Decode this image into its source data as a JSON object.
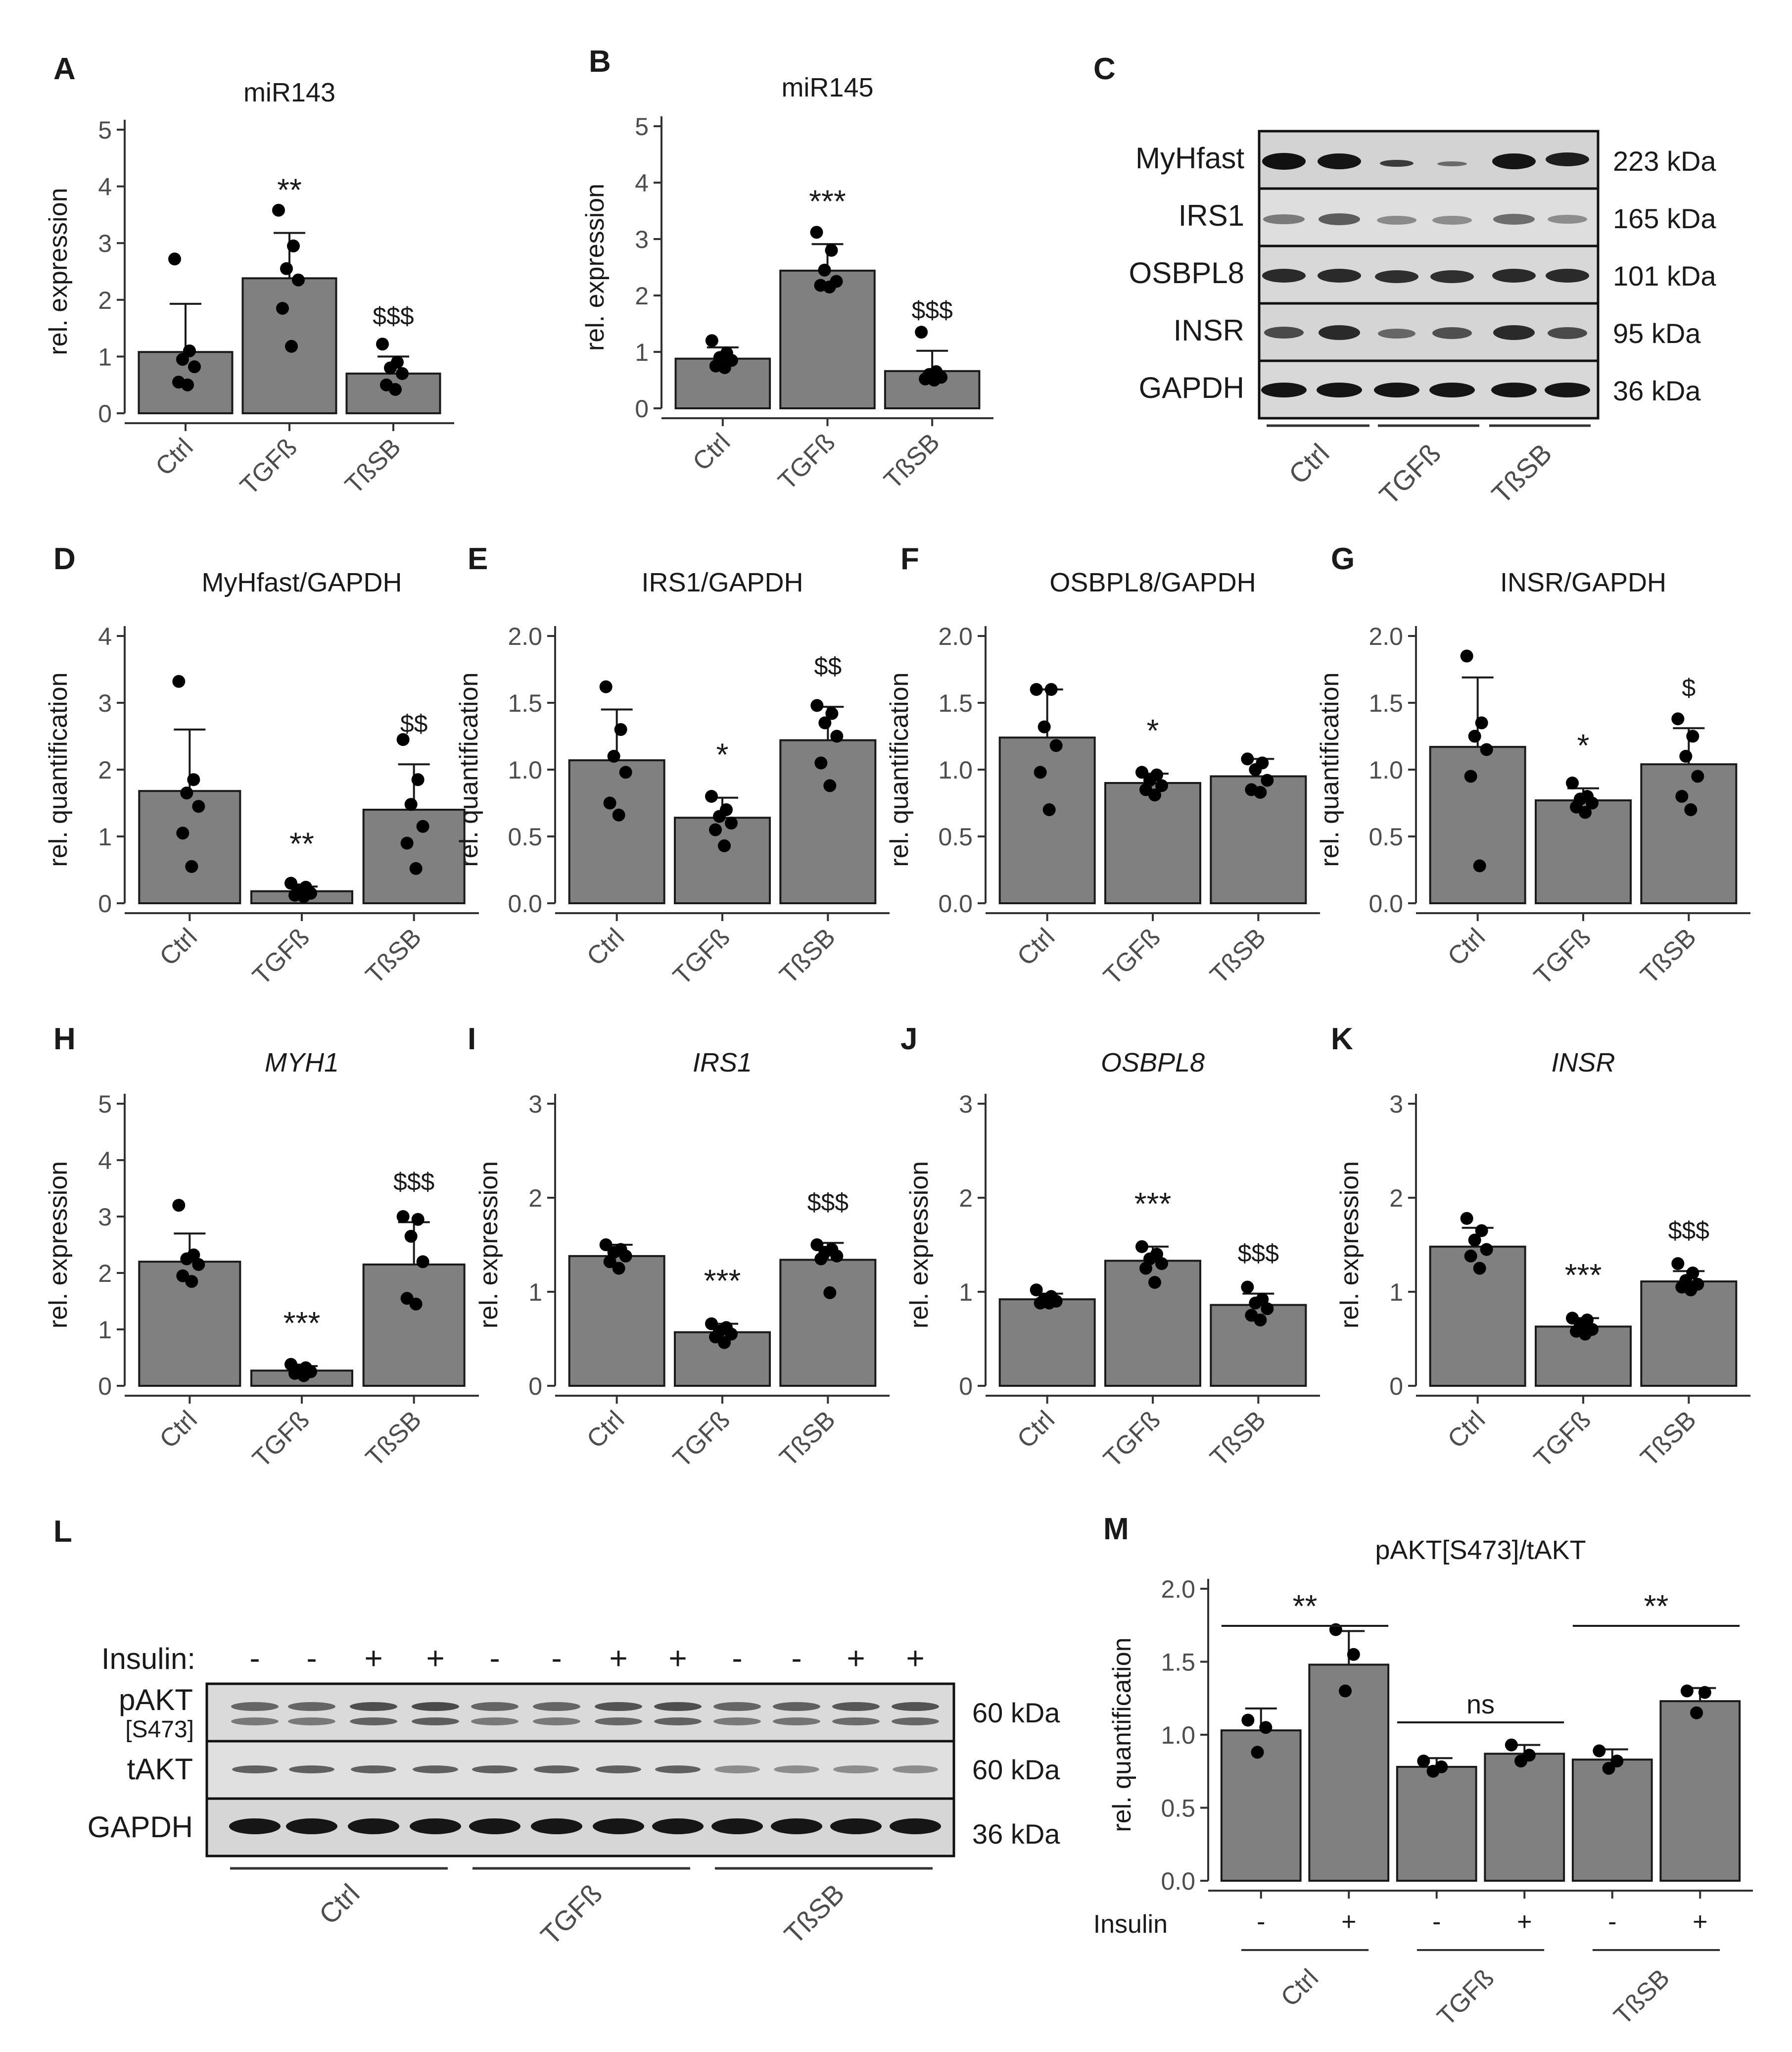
{
  "colors": {
    "bar": "#808080",
    "outline": "#1a1a1a",
    "dot": "#000000",
    "axis": "#333333",
    "tick_text": "#4d4d4d"
  },
  "chart_data": [
    {
      "id": "A",
      "panel_label": "A",
      "type": "bar",
      "title": "miR143",
      "title_italic": false,
      "ylabel": "rel. expression",
      "ylim": [
        0,
        5
      ],
      "yticks": [
        "0",
        "1",
        "2",
        "3",
        "4",
        "5"
      ],
      "categories": [
        "Ctrl",
        "TGFß",
        "TßSB"
      ],
      "values": [
        1.08,
        2.38,
        0.7
      ],
      "errors": [
        0.85,
        0.8,
        0.3
      ],
      "points": [
        [
          2.72,
          1.1,
          0.95,
          0.82,
          0.55,
          0.5
        ],
        [
          3.58,
          2.95,
          2.55,
          2.35,
          1.85,
          1.18
        ],
        [
          1.22,
          0.9,
          0.8,
          0.7,
          0.5,
          0.42
        ]
      ],
      "annotations": [
        "",
        "**",
        "$$$"
      ]
    },
    {
      "id": "B",
      "panel_label": "B",
      "type": "bar",
      "title": "miR145",
      "title_italic": false,
      "ylabel": "rel. expression",
      "ylim": [
        0,
        5
      ],
      "yticks": [
        "0",
        "1",
        "2",
        "3",
        "4",
        "5"
      ],
      "categories": [
        "Ctrl",
        "TGFß",
        "TßSB"
      ],
      "values": [
        0.88,
        2.44,
        0.66
      ],
      "errors": [
        0.2,
        0.47,
        0.36
      ],
      "points": [
        [
          1.2,
          0.98,
          0.9,
          0.85,
          0.75,
          0.72
        ],
        [
          3.12,
          2.8,
          2.45,
          2.25,
          2.18,
          2.15
        ],
        [
          1.35,
          0.65,
          0.6,
          0.55,
          0.52,
          0.5
        ]
      ],
      "annotations": [
        "",
        "***",
        "$$$"
      ]
    },
    {
      "id": "D",
      "panel_label": "D",
      "type": "bar",
      "title": "MyHfast/GAPDH",
      "title_italic": false,
      "ylabel": "rel. quantification",
      "ylim": [
        0,
        4
      ],
      "yticks": [
        "0",
        "1",
        "2",
        "3",
        "4"
      ],
      "categories": [
        "Ctrl",
        "TGFß",
        "TßSB"
      ],
      "values": [
        1.68,
        0.18,
        1.4
      ],
      "errors": [
        0.92,
        0.07,
        0.68
      ],
      "points": [
        [
          3.32,
          1.85,
          1.65,
          1.45,
          1.05,
          0.55
        ],
        [
          0.3,
          0.24,
          0.2,
          0.15,
          0.12,
          0.1
        ],
        [
          2.45,
          1.85,
          1.48,
          1.15,
          0.9,
          0.52
        ]
      ],
      "annotations": [
        "",
        "**",
        "$$"
      ]
    },
    {
      "id": "E",
      "panel_label": "E",
      "type": "bar",
      "title": "IRS1/GAPDH",
      "title_italic": false,
      "ylabel": "rel. quantification",
      "ylim": [
        0,
        2
      ],
      "yticks": [
        "0.0",
        "0.5",
        "1.0",
        "1.5",
        "2.0"
      ],
      "categories": [
        "Ctrl",
        "TGFß",
        "TßSB"
      ],
      "values": [
        1.07,
        0.64,
        1.22
      ],
      "errors": [
        0.38,
        0.15,
        0.25
      ],
      "points": [
        [
          1.62,
          1.3,
          1.1,
          0.98,
          0.75,
          0.66
        ],
        [
          0.8,
          0.7,
          0.65,
          0.6,
          0.55,
          0.43
        ],
        [
          1.48,
          1.42,
          1.35,
          1.25,
          1.05,
          0.88
        ]
      ],
      "annotations": [
        "",
        "*",
        "$$"
      ]
    },
    {
      "id": "F",
      "panel_label": "F",
      "type": "bar",
      "title": "OSBPL8/GAPDH",
      "title_italic": false,
      "ylabel": "rel. quantification",
      "ylim": [
        0,
        2
      ],
      "yticks": [
        "0.0",
        "0.5",
        "1.0",
        "1.5",
        "2.0"
      ],
      "categories": [
        "Ctrl",
        "TGFß",
        "TßSB"
      ],
      "values": [
        1.24,
        0.9,
        0.95
      ],
      "errors": [
        0.36,
        0.07,
        0.13
      ],
      "points": [
        [
          1.6,
          1.6,
          1.32,
          1.18,
          0.98,
          0.7
        ],
        [
          0.98,
          0.96,
          0.92,
          0.88,
          0.85,
          0.81
        ],
        [
          1.08,
          1.05,
          1.0,
          0.92,
          0.85,
          0.83
        ]
      ],
      "annotations": [
        "",
        "*",
        ""
      ]
    },
    {
      "id": "G",
      "panel_label": "G",
      "type": "bar",
      "title": "INSR/GAPDH",
      "title_italic": false,
      "ylabel": "rel. quantification",
      "ylim": [
        0,
        2
      ],
      "yticks": [
        "0.0",
        "0.5",
        "1.0",
        "1.5",
        "2.0"
      ],
      "categories": [
        "Ctrl",
        "TGFß",
        "TßSB"
      ],
      "values": [
        1.17,
        0.77,
        1.04
      ],
      "errors": [
        0.52,
        0.09,
        0.27
      ],
      "points": [
        [
          1.85,
          1.35,
          1.25,
          1.15,
          0.95,
          0.28
        ],
        [
          0.9,
          0.8,
          0.78,
          0.75,
          0.72,
          0.68
        ],
        [
          1.38,
          1.25,
          1.1,
          0.95,
          0.8,
          0.7
        ]
      ],
      "annotations": [
        "",
        "*",
        "$"
      ]
    },
    {
      "id": "H",
      "panel_label": "H",
      "type": "bar",
      "title": "MYH1",
      "title_italic": true,
      "ylabel": "rel. expression",
      "ylim": [
        0,
        5
      ],
      "yticks": [
        "0",
        "1",
        "2",
        "3",
        "4",
        "5"
      ],
      "categories": [
        "Ctrl",
        "TGFß",
        "TßSB"
      ],
      "values": [
        2.2,
        0.27,
        2.15
      ],
      "errors": [
        0.5,
        0.08,
        0.75
      ],
      "points": [
        [
          3.2,
          2.32,
          2.25,
          2.15,
          1.95,
          1.85
        ],
        [
          0.38,
          0.32,
          0.28,
          0.25,
          0.22,
          0.18
        ],
        [
          3.0,
          2.95,
          2.65,
          2.2,
          1.55,
          1.45
        ]
      ],
      "annotations": [
        "",
        "***",
        "$$$"
      ]
    },
    {
      "id": "I",
      "panel_label": "I",
      "type": "bar",
      "title": "IRS1",
      "title_italic": true,
      "ylabel": "rel. expression",
      "ylim": [
        0,
        3
      ],
      "yticks": [
        "0",
        "1",
        "2",
        "3"
      ],
      "categories": [
        "Ctrl",
        "TGFß",
        "TßSB"
      ],
      "values": [
        1.38,
        0.57,
        1.34
      ],
      "errors": [
        0.12,
        0.09,
        0.18
      ],
      "points": [
        [
          1.5,
          1.45,
          1.42,
          1.38,
          1.32,
          1.25
        ],
        [
          0.66,
          0.62,
          0.58,
          0.55,
          0.52,
          0.46
        ],
        [
          1.5,
          1.45,
          1.42,
          1.38,
          1.35,
          0.99
        ]
      ],
      "annotations": [
        "",
        "***",
        "$$$"
      ]
    },
    {
      "id": "J",
      "panel_label": "J",
      "type": "bar",
      "title": "OSBPL8",
      "title_italic": true,
      "ylabel": "rel. expression",
      "ylim": [
        0,
        3
      ],
      "yticks": [
        "0",
        "1",
        "2",
        "3"
      ],
      "categories": [
        "Ctrl",
        "TGFß",
        "TßSB"
      ],
      "values": [
        0.92,
        1.33,
        0.86
      ],
      "errors": [
        0.06,
        0.15,
        0.12
      ],
      "points": [
        [
          1.02,
          0.95,
          0.92,
          0.9,
          0.88,
          0.88
        ],
        [
          1.48,
          1.4,
          1.35,
          1.3,
          1.25,
          1.1
        ],
        [
          1.05,
          0.92,
          0.88,
          0.82,
          0.75,
          0.7
        ]
      ],
      "annotations": [
        "",
        "***",
        "$$$"
      ]
    },
    {
      "id": "K",
      "panel_label": "K",
      "type": "bar",
      "title": "INSR",
      "title_italic": true,
      "ylabel": "rel. expression",
      "ylim": [
        0,
        3
      ],
      "yticks": [
        "0",
        "1",
        "2",
        "3"
      ],
      "categories": [
        "Ctrl",
        "TGFß",
        "TßSB"
      ],
      "values": [
        1.48,
        0.63,
        1.11
      ],
      "errors": [
        0.2,
        0.09,
        0.11
      ],
      "points": [
        [
          1.78,
          1.65,
          1.55,
          1.45,
          1.38,
          1.25
        ],
        [
          0.72,
          0.7,
          0.65,
          0.6,
          0.58,
          0.55
        ],
        [
          1.3,
          1.2,
          1.12,
          1.08,
          1.05,
          1.02
        ]
      ],
      "annotations": [
        "",
        "***",
        "$$$"
      ]
    },
    {
      "id": "M",
      "panel_label": "M",
      "type": "bar",
      "title": "pAKT[S473]/tAKT",
      "title_italic": false,
      "ylabel": "rel. quantification",
      "ylim": [
        0,
        2
      ],
      "yticks": [
        "0.0",
        "0.5",
        "1.0",
        "1.5",
        "2.0"
      ],
      "row_label": "Insulin",
      "insulin": [
        "-",
        "+",
        "-",
        "+",
        "-",
        "+"
      ],
      "groups": [
        "Ctrl",
        "TGFß",
        "TßSB"
      ],
      "values": [
        1.03,
        1.48,
        0.78,
        0.87,
        0.83,
        1.23
      ],
      "errors": [
        0.15,
        0.23,
        0.06,
        0.06,
        0.07,
        0.09
      ],
      "points": [
        [
          1.1,
          1.05,
          0.88
        ],
        [
          1.72,
          1.55,
          1.3
        ],
        [
          0.82,
          0.78,
          0.75
        ],
        [
          0.93,
          0.86,
          0.82
        ],
        [
          0.89,
          0.82,
          0.77
        ],
        [
          1.3,
          1.29,
          1.15
        ]
      ],
      "comparisons": [
        {
          "from": 0,
          "to": 1,
          "label": "**"
        },
        {
          "from": 2,
          "to": 3,
          "label": "ns"
        },
        {
          "from": 4,
          "to": 5,
          "label": "**"
        }
      ]
    }
  ],
  "blot_C": {
    "panel_label": "C",
    "rows": [
      {
        "name": "MyHfast",
        "kda": "223 kDa"
      },
      {
        "name": "IRS1",
        "kda": "165 kDa"
      },
      {
        "name": "OSBPL8",
        "kda": "101 kDa"
      },
      {
        "name": "INSR",
        "kda": "95 kDa"
      },
      {
        "name": "GAPDH",
        "kda": "36 kDa"
      }
    ],
    "groups": [
      "Ctrl",
      "TGFß",
      "TßSB"
    ]
  },
  "blot_L": {
    "panel_label": "L",
    "insulin_label": "Insulin:",
    "insulin": [
      "-",
      "-",
      "+",
      "+",
      "-",
      "-",
      "+",
      "+",
      "-",
      "-",
      "+",
      "+"
    ],
    "rows": [
      {
        "name": "pAKT",
        "sublabel": "[S473]",
        "kda": "60 kDa"
      },
      {
        "name": "tAKT",
        "sublabel": "",
        "kda": "60 kDa"
      },
      {
        "name": "GAPDH",
        "sublabel": "",
        "kda": "36 kDa"
      }
    ],
    "groups": [
      "Ctrl",
      "TGFß",
      "TßSB"
    ]
  }
}
